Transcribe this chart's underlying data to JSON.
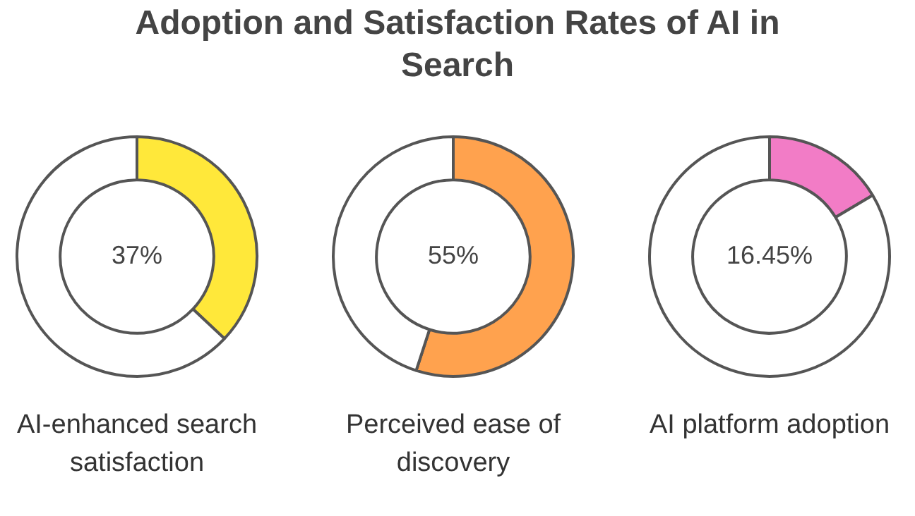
{
  "chart_data": [
    {
      "type": "donut",
      "title": "Adoption and Satisfaction Rates of AI in Search",
      "xlabel": "AI-enhanced search satisfaction",
      "categories": [
        null,
        null
      ],
      "values": [
        37,
        63
      ],
      "colors": [
        "#ffe83a",
        "#ffffff"
      ],
      "value_labels": [
        "37%",
        null
      ],
      "legend": false
    },
    {
      "type": "donut",
      "xlabel": "Perceived ease of discovery",
      "categories": [
        null,
        null
      ],
      "values": [
        55,
        45
      ],
      "colors": [
        "#ffa24e",
        "#ffffff"
      ],
      "value_labels": [
        "55%",
        null
      ],
      "legend": false
    },
    {
      "type": "donut",
      "xlabel": "AI platform adoption",
      "categories": [
        null,
        null
      ],
      "values": [
        16.45,
        83.55
      ],
      "colors": [
        "#f27cc6",
        "#ffffff"
      ],
      "value_labels": [
        "16.45%",
        null
      ],
      "legend": false
    }
  ]
}
